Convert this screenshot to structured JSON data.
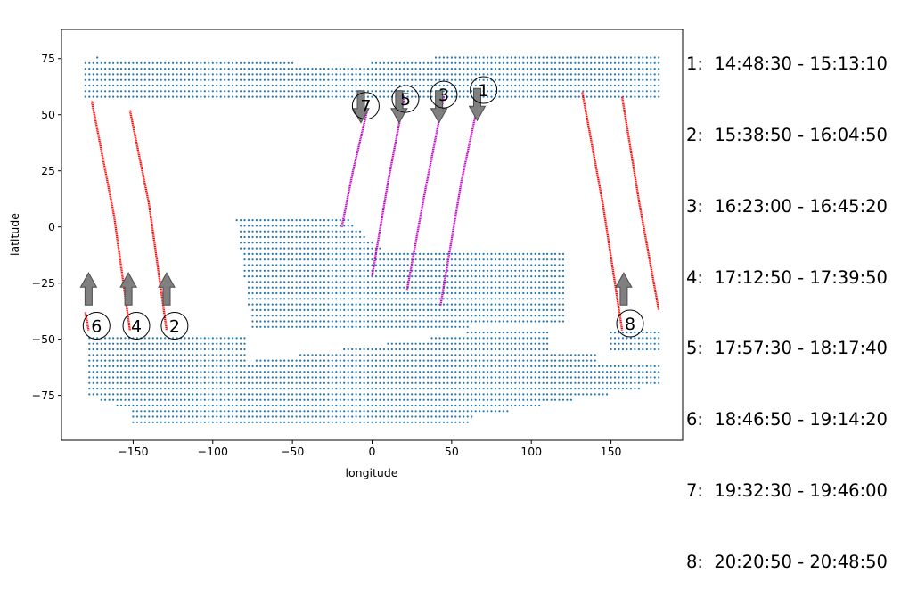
{
  "chart_data": {
    "type": "scatter",
    "xlabel": "longitude",
    "ylabel": "latitude",
    "xlim": [
      -195,
      195
    ],
    "ylim": [
      -95,
      88
    ],
    "xticks": [
      -150,
      -100,
      -50,
      0,
      50,
      100,
      150
    ],
    "yticks": [
      -75,
      -50,
      -25,
      0,
      25,
      50,
      75
    ],
    "grid": false,
    "colors": {
      "grid_points": "#1f77b4",
      "ascending_track": "#ff0000",
      "descending_track": "#bf00bf",
      "arrow": "#808080"
    },
    "passes": [
      {
        "id": "1",
        "time_range": "14:48:30 - 15:13:10",
        "direction": "south",
        "track": [
          [
            68,
            60
          ],
          [
            56,
            20
          ],
          [
            43,
            -35
          ]
        ],
        "label_at": [
          70,
          61
        ],
        "arrow_at": [
          66,
          53
        ]
      },
      {
        "id": "2",
        "time_range": "15:38:50 - 16:04:50",
        "direction": "north",
        "track": [
          [
            -152,
            52
          ],
          [
            -140,
            10
          ],
          [
            -129,
            -46
          ]
        ],
        "label_at": [
          -124,
          -44
        ],
        "arrow_at": [
          -129,
          -26
        ]
      },
      {
        "id": "3",
        "time_range": "16:23:00 - 16:45:20",
        "direction": "south",
        "track": [
          [
            45,
            58
          ],
          [
            33,
            15
          ],
          [
            22,
            -28
          ]
        ],
        "label_at": [
          45,
          59
        ],
        "arrow_at": [
          42,
          52
        ]
      },
      {
        "id": "4",
        "time_range": "17:12:50 - 17:39:50",
        "direction": "north",
        "track": [
          [
            -176,
            56
          ],
          [
            -162,
            5
          ],
          [
            -152,
            -46
          ]
        ],
        "label_at": [
          -148,
          -44
        ],
        "arrow_at": [
          -153,
          -26
        ]
      },
      {
        "id": "5",
        "time_range": "17:57:30 - 18:17:40",
        "direction": "south",
        "track": [
          [
            20,
            57
          ],
          [
            10,
            20
          ],
          [
            0,
            -22
          ]
        ],
        "label_at": [
          21,
          57
        ],
        "arrow_at": [
          17,
          52
        ]
      },
      {
        "id": "6",
        "time_range": "18:46:50 - 19:14:20",
        "direction": "north",
        "track": [
          [
            -180,
            -38
          ],
          [
            -178,
            -46
          ]
        ],
        "label_at": [
          -173,
          -44
        ],
        "arrow_at": [
          -178,
          -26
        ]
      },
      {
        "id": "7",
        "time_range": "19:32:30 - 19:46:00",
        "direction": "south",
        "track": [
          [
            -3,
            52
          ],
          [
            -12,
            25
          ],
          [
            -19,
            0
          ]
        ],
        "label_at": [
          -4,
          54
        ],
        "arrow_at": [
          -7,
          52
        ]
      },
      {
        "id": "8",
        "time_range": "20:20:50 - 20:48:50",
        "direction": "north",
        "track": [
          [
            132,
            60
          ],
          [
            145,
            10
          ],
          [
            157,
            -46
          ]
        ],
        "label_at": [
          162,
          -43
        ],
        "arrow_at": [
          158,
          -26
        ]
      },
      {
        "id": "8b",
        "time_range": "",
        "direction": "north",
        "track": [
          [
            157,
            58
          ],
          [
            168,
            10
          ],
          [
            180,
            -37
          ]
        ],
        "label_at": null,
        "arrow_at": null
      }
    ]
  },
  "legend": {
    "entries": [
      "1:  14:48:30 - 15:13:10",
      "2:  15:38:50 - 16:04:50",
      "3:  16:23:00 - 16:45:20",
      "4:  17:12:50 - 17:39:50",
      "5:  17:57:30 - 18:17:40",
      "6:  18:46:50 - 19:14:20",
      "7:  19:32:30 - 19:46:00",
      "8:  20:20:50 - 20:48:50"
    ]
  }
}
